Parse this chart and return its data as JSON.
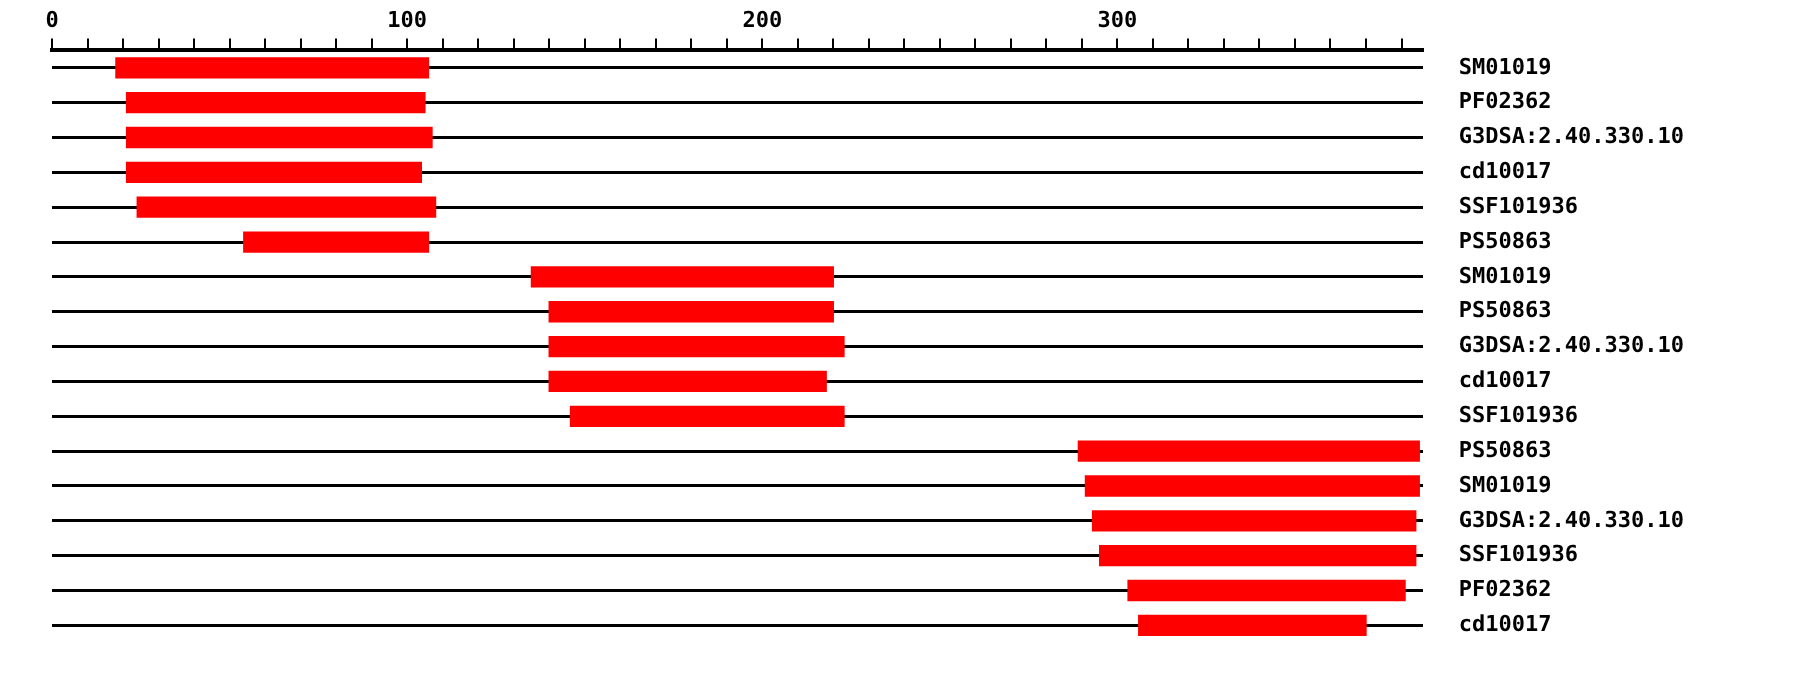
{
  "chart_data": {
    "type": "bar",
    "orientation": "horizontal",
    "categories": [
      "SM01019",
      "PF02362",
      "G3DSA:2.40.330.10",
      "cd10017",
      "SSF101936",
      "PS50863",
      "SM01019",
      "PS50863",
      "G3DSA:2.40.330.10",
      "cd10017",
      "SSF101936",
      "PS50863",
      "SM01019",
      "G3DSA:2.40.330.10",
      "SSF101936",
      "PF02362",
      "cd10017"
    ],
    "base": [
      18,
      21,
      21,
      21,
      24,
      54,
      135,
      140,
      140,
      140,
      146,
      289,
      291,
      293,
      295,
      303,
      306
    ],
    "values": [
      88,
      84,
      86,
      83,
      84,
      52,
      85,
      80,
      83,
      78,
      77,
      96,
      94,
      91,
      89,
      78,
      64
    ],
    "color": "#ff0000",
    "xlim": [
      0,
      386
    ],
    "xticks": [
      0,
      {
        "value": 10,
        "label": null
      },
      {
        "value": 20,
        "label": null
      },
      {
        "value": 30,
        "label": null
      },
      {
        "value": 40,
        "label": null
      },
      {
        "value": 50,
        "label": null
      },
      {
        "value": 60,
        "label": null
      },
      {
        "value": 70,
        "label": null
      },
      {
        "value": 80,
        "label": null
      },
      {
        "value": 90,
        "label": null
      },
      100,
      {
        "value": 110,
        "label": null
      },
      {
        "value": 120,
        "label": null
      },
      {
        "value": 130,
        "label": null
      },
      {
        "value": 140,
        "label": null
      },
      {
        "value": 150,
        "label": null
      },
      {
        "value": 160,
        "label": null
      },
      {
        "value": 170,
        "label": null
      },
      {
        "value": 180,
        "label": null
      },
      {
        "value": 190,
        "label": null
      },
      200,
      {
        "value": 210,
        "label": null
      },
      {
        "value": 220,
        "label": null
      },
      {
        "value": 230,
        "label": null
      },
      {
        "value": 240,
        "label": null
      },
      {
        "value": 250,
        "label": null
      },
      {
        "value": 260,
        "label": null
      },
      {
        "value": 270,
        "label": null
      },
      {
        "value": 280,
        "label": null
      },
      {
        "value": 290,
        "label": null
      },
      300,
      {
        "value": 310,
        "label": null
      },
      {
        "value": 320,
        "label": null
      },
      {
        "value": 330,
        "label": null
      },
      {
        "value": 340,
        "label": null
      },
      {
        "value": 350,
        "label": null
      },
      {
        "value": 360,
        "label": null
      },
      {
        "value": 370,
        "label": null
      },
      {
        "value": 380,
        "label": null
      }
    ],
    "grid": "y",
    "legend": false
  }
}
